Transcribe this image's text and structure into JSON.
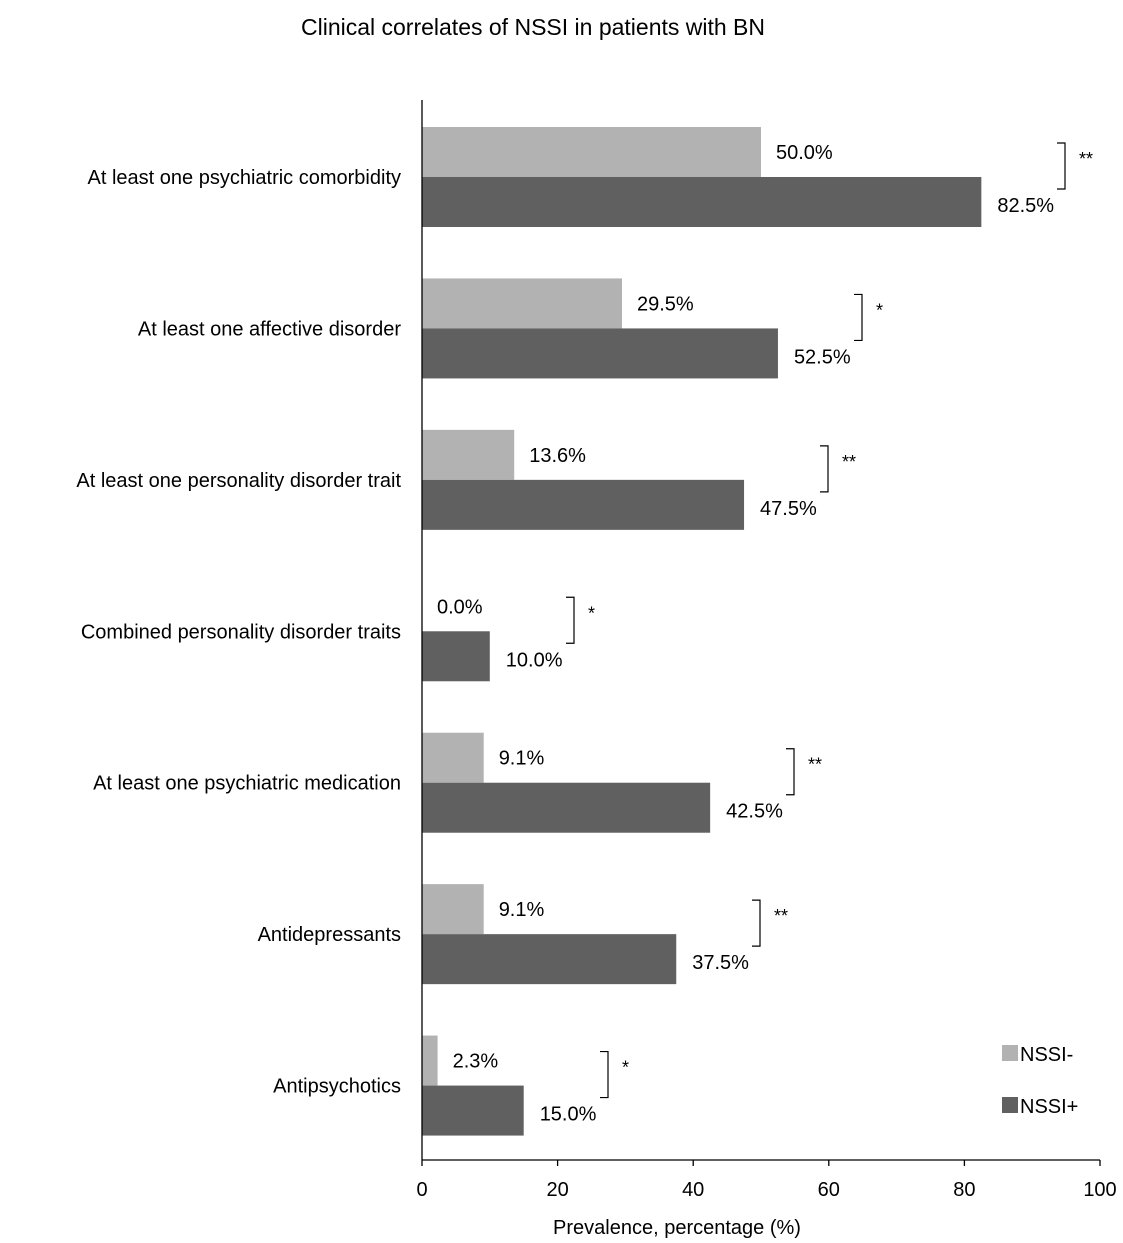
{
  "chart_data": {
    "type": "bar",
    "orientation": "horizontal",
    "title": "Clinical correlates of NSSI in patients with BN",
    "xlabel": "Prevalence, percentage (%)",
    "ylabel": "",
    "xlim": [
      0,
      100
    ],
    "x_ticks": [
      "0",
      "20",
      "40",
      "60",
      "80",
      "100"
    ],
    "grid": false,
    "legend_position": "bottom-right",
    "categories": [
      "At least one  psychiatric comorbidity",
      "At least one affective disorder",
      "At least one personality disorder trait",
      "Combined personality disorder traits",
      "At least one psychiatric medication",
      "Antidepressants",
      "Antipsychotics"
    ],
    "series": [
      {
        "name": "NSSI-",
        "color": "#b2b2b2",
        "values": [
          50.0,
          29.5,
          13.6,
          0.0,
          9.1,
          9.1,
          2.3
        ],
        "labels": [
          "50.0%",
          "29.5%",
          "13.6%",
          "0.0%",
          "9.1%",
          "9.1%",
          "2.3%"
        ]
      },
      {
        "name": "NSSI+",
        "color": "#606060",
        "values": [
          82.5,
          52.5,
          47.5,
          10.0,
          42.5,
          37.5,
          15.0
        ],
        "labels": [
          "82.5%",
          "52.5%",
          "47.5%",
          "10.0%",
          "42.5%",
          "37.5%",
          "15.0%"
        ]
      }
    ],
    "significance": [
      "**",
      "*",
      "**",
      "*",
      "**",
      "**",
      "*"
    ]
  }
}
